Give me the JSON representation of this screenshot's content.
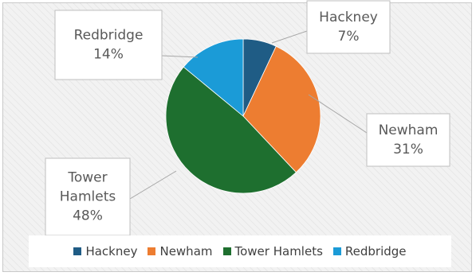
{
  "chart_data": {
    "type": "pie",
    "categories": [
      "Hackney",
      "Newham",
      "Tower Hamlets",
      "Redbridge"
    ],
    "values": [
      7,
      31,
      48,
      14
    ],
    "value_labels": [
      "7%",
      "31%",
      "48%",
      "14%"
    ],
    "colors": [
      "#1f5c85",
      "#ed7d31",
      "#1e6f2f",
      "#1b9bd7"
    ],
    "data_label_lines": [
      [
        "Hackney",
        "7%"
      ],
      [
        "Newham",
        "31%"
      ],
      [
        "Tower",
        "Hamlets",
        "48%"
      ],
      [
        "Redbridge",
        "14%"
      ]
    ],
    "legend_placement": "bottom",
    "start_angle_deg": 0,
    "direction": "clockwise"
  }
}
